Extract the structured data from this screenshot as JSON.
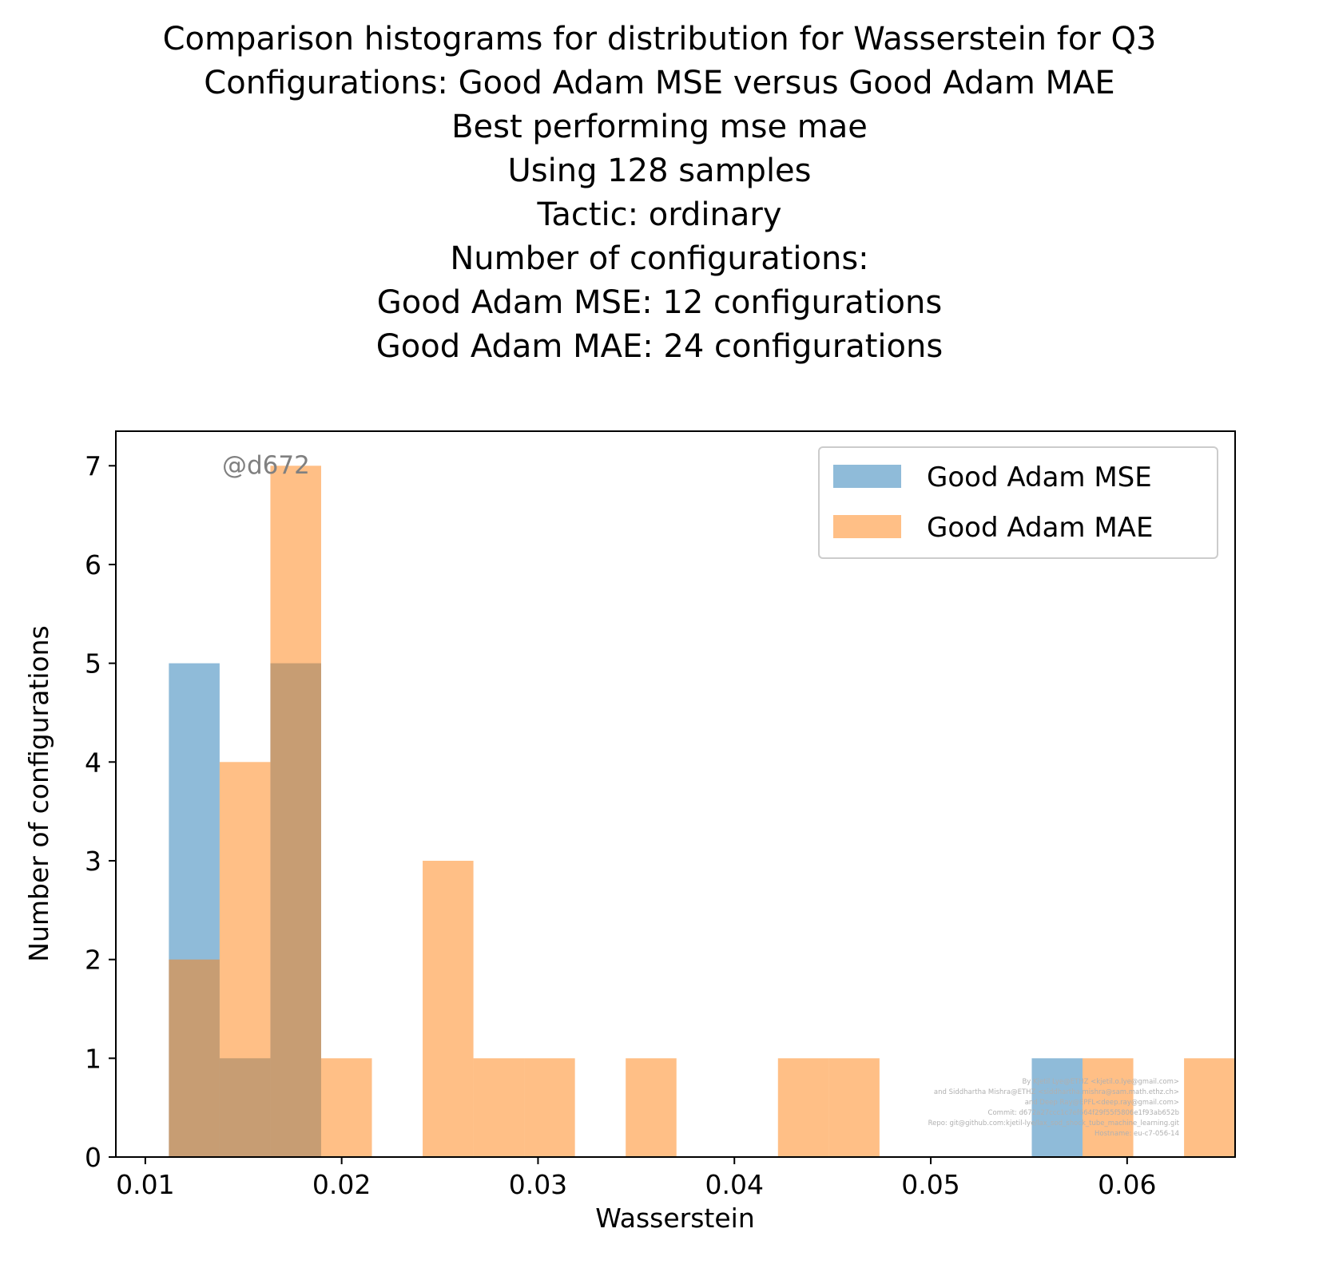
{
  "title_lines": [
    "Comparison histograms for distribution for Wasserstein for Q3",
    "Configurations: Good Adam MSE versus Good Adam MAE",
    "Best performing mse mae",
    "Using 128 samples",
    "Tactic: ordinary",
    "Number of configurations:",
    "Good Adam MSE: 12 configurations",
    "Good Adam MAE: 24 configurations"
  ],
  "watermark": "@d672",
  "credits": [
    "By Kjetil Lye@ETHZ <kjetil.o.lye@gmail.com>",
    "and Siddhartha Mishra@ETHZ <siddhartha.mishra@sam.math.ethz.ch>",
    "and Deep Ray@EPFL<deep.ray@gmail.com>",
    "Commit: d672a27ccc1c7ef664f29f55f5806e1f93ab652b",
    "Repo: git@github.com:kjetil-lye/lax_sod_shock_tube_machine_learning.git",
    "Hostname: eu-c7-056-14"
  ],
  "colors": {
    "mse": "#1f77b4",
    "mae": "#ff7f0e",
    "bar_alpha": 0.5
  },
  "chart_data": {
    "type": "bar",
    "subtype": "overlapping histogram",
    "xlabel": "Wasserstein",
    "ylabel": "Number of configurations",
    "xlim": [
      0.0085,
      0.0655
    ],
    "ylim": [
      0,
      7.35
    ],
    "xticks": [
      0.01,
      0.02,
      0.03,
      0.04,
      0.05,
      0.06
    ],
    "xtick_labels": [
      "0.01",
      "0.02",
      "0.03",
      "0.04",
      "0.05",
      "0.06"
    ],
    "yticks": [
      0,
      1,
      2,
      3,
      4,
      5,
      6,
      7
    ],
    "ytick_labels": [
      "0",
      "1",
      "2",
      "3",
      "4",
      "5",
      "6",
      "7"
    ],
    "grid": false,
    "legend_position": "top-right",
    "bin_start": 0.0112,
    "bin_width": 0.002585,
    "series": [
      {
        "name": "Good Adam MSE",
        "color_key": "mse",
        "counts": [
          5,
          1,
          5,
          0,
          0,
          0,
          0,
          0,
          0,
          0,
          0,
          0,
          0,
          0,
          0,
          0,
          0,
          1,
          0,
          0
        ]
      },
      {
        "name": "Good Adam MAE",
        "color_key": "mae",
        "counts": [
          2,
          4,
          7,
          1,
          0,
          3,
          1,
          1,
          0,
          1,
          0,
          0,
          1,
          1,
          0,
          0,
          0,
          0,
          1,
          0,
          1
        ]
      }
    ]
  }
}
